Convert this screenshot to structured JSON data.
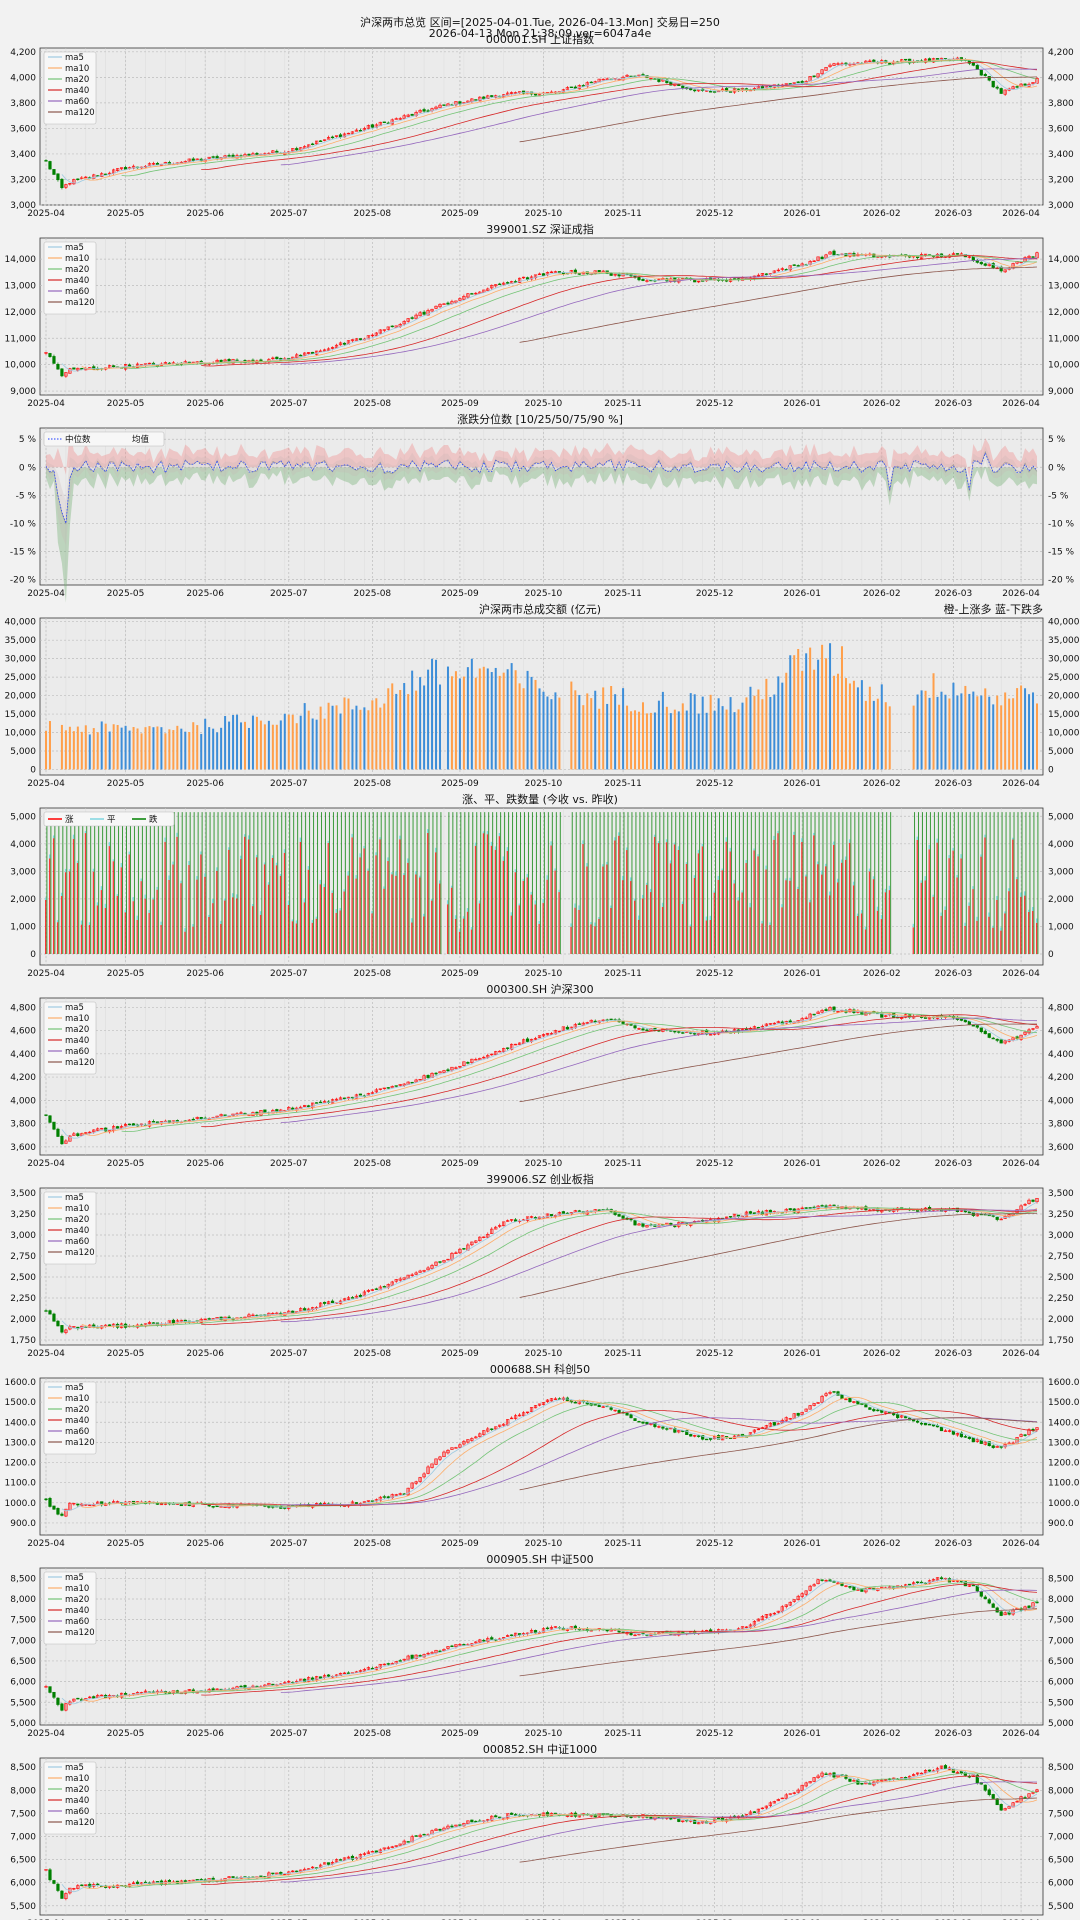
{
  "header": {
    "line1": "沪深两市总览 区间=[2025-04-01.Tue, 2026-04-13.Mon] 交易日=250",
    "line2": "2026-04-13.Mon 21:38:09 ver=6047a4e"
  },
  "x_ticks": [
    "2025-04",
    "2025-05",
    "2025-06",
    "2025-07",
    "2025-08",
    "2025-09",
    "2025-10",
    "2025-11",
    "2025-12",
    "2026-01",
    "2026-02",
    "2026-03",
    "2026-04"
  ],
  "ma_names": [
    "ma5",
    "ma10",
    "ma20",
    "ma40",
    "ma60",
    "ma120"
  ],
  "colors": {
    "up": "#ff0000",
    "down": "#008000",
    "ma5": "#9ecae1",
    "ma10": "#fdae6b",
    "ma20": "#74c476",
    "ma40": "#d62728",
    "ma60": "#9467bd",
    "ma120": "#8c564b",
    "bar_orange": "#ff9f4a",
    "bar_blue": "#3c8dd8",
    "median": "#1f3cff"
  },
  "chart_data": [
    {
      "type": "candlestick",
      "title": "000001.SH 上证指数",
      "yticks": [
        "3,000",
        "3,200",
        "3,400",
        "3,600",
        "3,800",
        "4,000",
        "4,200"
      ],
      "ylim": [
        3000,
        4230
      ],
      "legend": [
        "ma5",
        "ma10",
        "ma20",
        "ma40",
        "ma60",
        "ma120"
      ],
      "anchors": [
        [
          0,
          3340
        ],
        [
          4,
          3130
        ],
        [
          6,
          3180
        ],
        [
          20,
          3290
        ],
        [
          40,
          3360
        ],
        [
          60,
          3420
        ],
        [
          80,
          3600
        ],
        [
          100,
          3780
        ],
        [
          115,
          3870
        ],
        [
          128,
          3880
        ],
        [
          140,
          3990
        ],
        [
          150,
          4010
        ],
        [
          165,
          3890
        ],
        [
          175,
          3900
        ],
        [
          190,
          3960
        ],
        [
          197,
          4100
        ],
        [
          210,
          4120
        ],
        [
          230,
          4140
        ],
        [
          233,
          4090
        ],
        [
          240,
          3880
        ],
        [
          249,
          3980
        ]
      ]
    },
    {
      "type": "candlestick",
      "title": "399001.SZ 深证成指",
      "yticks": [
        "9,000",
        "10,000",
        "11,000",
        "12,000",
        "13,000",
        "14,000"
      ],
      "ylim": [
        8850,
        14800
      ],
      "legend": [
        "ma5",
        "ma10",
        "ma20",
        "ma40",
        "ma60",
        "ma120"
      ],
      "anchors": [
        [
          0,
          10480
        ],
        [
          4,
          9600
        ],
        [
          6,
          9800
        ],
        [
          20,
          9950
        ],
        [
          40,
          10100
        ],
        [
          60,
          10200
        ],
        [
          80,
          11000
        ],
        [
          100,
          12300
        ],
        [
          115,
          13100
        ],
        [
          128,
          13500
        ],
        [
          140,
          13500
        ],
        [
          150,
          13250
        ],
        [
          165,
          13200
        ],
        [
          175,
          13250
        ],
        [
          190,
          13800
        ],
        [
          197,
          14200
        ],
        [
          210,
          14100
        ],
        [
          230,
          14150
        ],
        [
          233,
          14000
        ],
        [
          240,
          13600
        ],
        [
          249,
          14200
        ]
      ]
    },
    {
      "type": "band",
      "title": "涨跌分位数 [10/25/50/75/90 %]",
      "yticks": [
        "-20 %",
        "-15 %",
        "-10 %",
        "-5 %",
        "0 %",
        "5 %"
      ],
      "yticks_left": [
        "-20 %",
        "-15 %",
        "-10 %",
        "-5 %",
        "0 %",
        "5 %"
      ],
      "ylim": [
        -21,
        7
      ],
      "legend": [
        "中位数",
        "均值"
      ],
      "series": [
        {
          "name": "中位数"
        },
        {
          "name": "均值"
        }
      ]
    },
    {
      "type": "bar",
      "title": "沪深两市总成交额 (亿元)",
      "note": "橙-上涨多 蓝-下跌多",
      "yticks": [
        "0",
        "5,000",
        "10,000",
        "15,000",
        "20,000",
        "25,000",
        "30,000",
        "35,000",
        "40,000"
      ],
      "ylim": [
        -1500,
        41000
      ]
    },
    {
      "type": "stacked-bar",
      "title": "涨、平、跌数量 (今收 vs. 昨收)",
      "legend": [
        "涨",
        "平",
        "跌"
      ],
      "yticks": [
        "0",
        "1,000",
        "2,000",
        "3,000",
        "4,000",
        "5,000"
      ],
      "ylim": [
        -400,
        5300
      ]
    },
    {
      "type": "candlestick",
      "title": "000300.SH 沪深300",
      "yticks": [
        "3,600",
        "3,800",
        "4,000",
        "4,200",
        "4,400",
        "4,600",
        "4,800"
      ],
      "ylim": [
        3530,
        4880
      ],
      "legend": [
        "ma5",
        "ma10",
        "ma20",
        "ma40",
        "ma60",
        "ma120"
      ],
      "anchors": [
        [
          0,
          3880
        ],
        [
          4,
          3620
        ],
        [
          6,
          3700
        ],
        [
          20,
          3780
        ],
        [
          40,
          3850
        ],
        [
          60,
          3920
        ],
        [
          80,
          4050
        ],
        [
          100,
          4250
        ],
        [
          115,
          4450
        ],
        [
          128,
          4600
        ],
        [
          140,
          4700
        ],
        [
          150,
          4620
        ],
        [
          165,
          4580
        ],
        [
          175,
          4600
        ],
        [
          190,
          4700
        ],
        [
          197,
          4790
        ],
        [
          210,
          4730
        ],
        [
          230,
          4700
        ],
        [
          233,
          4650
        ],
        [
          240,
          4480
        ],
        [
          249,
          4630
        ]
      ]
    },
    {
      "type": "candlestick",
      "title": "399006.SZ 创业板指",
      "yticks": [
        "1,750",
        "2,000",
        "2,250",
        "2,500",
        "2,750",
        "3,000",
        "3,250",
        "3,500"
      ],
      "ylim": [
        1690,
        3560
      ],
      "legend": [
        "ma5",
        "ma10",
        "ma20",
        "ma40",
        "ma60",
        "ma120"
      ],
      "anchors": [
        [
          0,
          2100
        ],
        [
          4,
          1850
        ],
        [
          6,
          1900
        ],
        [
          20,
          1920
        ],
        [
          40,
          1990
        ],
        [
          60,
          2060
        ],
        [
          80,
          2300
        ],
        [
          100,
          2700
        ],
        [
          115,
          3150
        ],
        [
          128,
          3250
        ],
        [
          140,
          3300
        ],
        [
          150,
          3100
        ],
        [
          165,
          3150
        ],
        [
          175,
          3250
        ],
        [
          190,
          3300
        ],
        [
          197,
          3350
        ],
        [
          210,
          3300
        ],
        [
          230,
          3300
        ],
        [
          233,
          3250
        ],
        [
          240,
          3200
        ],
        [
          249,
          3450
        ]
      ]
    },
    {
      "type": "candlestick",
      "title": "000688.SH 科创50",
      "yticks": [
        "900.0",
        "1000.0",
        "1100.0",
        "1200.0",
        "1300.0",
        "1400.0",
        "1500.0",
        "1600.0"
      ],
      "ylim": [
        840,
        1620
      ],
      "legend": [
        "ma5",
        "ma10",
        "ma20",
        "ma40",
        "ma60",
        "ma120"
      ],
      "anchors": [
        [
          0,
          1010
        ],
        [
          4,
          930
        ],
        [
          6,
          990
        ],
        [
          20,
          1000
        ],
        [
          40,
          990
        ],
        [
          60,
          980
        ],
        [
          80,
          1000
        ],
        [
          90,
          1050
        ],
        [
          100,
          1250
        ],
        [
          115,
          1400
        ],
        [
          128,
          1520
        ],
        [
          140,
          1480
        ],
        [
          150,
          1400
        ],
        [
          165,
          1320
        ],
        [
          175,
          1330
        ],
        [
          190,
          1450
        ],
        [
          197,
          1550
        ],
        [
          210,
          1450
        ],
        [
          220,
          1400
        ],
        [
          230,
          1330
        ],
        [
          240,
          1270
        ],
        [
          249,
          1380
        ]
      ]
    },
    {
      "type": "candlestick",
      "title": "000905.SH 中证500",
      "yticks": [
        "5,000",
        "5,500",
        "6,000",
        "6,500",
        "7,000",
        "7,500",
        "8,000",
        "8,500"
      ],
      "ylim": [
        4950,
        8750
      ],
      "legend": [
        "ma5",
        "ma10",
        "ma20",
        "ma40",
        "ma60",
        "ma120"
      ],
      "anchors": [
        [
          0,
          5850
        ],
        [
          4,
          5350
        ],
        [
          6,
          5550
        ],
        [
          20,
          5700
        ],
        [
          40,
          5800
        ],
        [
          60,
          5950
        ],
        [
          80,
          6300
        ],
        [
          100,
          6800
        ],
        [
          115,
          7100
        ],
        [
          128,
          7300
        ],
        [
          140,
          7250
        ],
        [
          150,
          7150
        ],
        [
          165,
          7200
        ],
        [
          175,
          7300
        ],
        [
          185,
          7800
        ],
        [
          195,
          8500
        ],
        [
          205,
          8200
        ],
        [
          215,
          8300
        ],
        [
          225,
          8500
        ],
        [
          233,
          8300
        ],
        [
          240,
          7600
        ],
        [
          249,
          7900
        ]
      ]
    },
    {
      "type": "candlestick",
      "title": "000852.SH 中证1000",
      "yticks": [
        "5,500",
        "6,000",
        "6,500",
        "7,000",
        "7,500",
        "8,000",
        "8,500"
      ],
      "ylim": [
        5300,
        8700
      ],
      "legend": [
        "ma5",
        "ma10",
        "ma20",
        "ma40",
        "ma60",
        "ma120"
      ],
      "anchors": [
        [
          0,
          6250
        ],
        [
          4,
          5650
        ],
        [
          6,
          5900
        ],
        [
          20,
          5950
        ],
        [
          40,
          6050
        ],
        [
          60,
          6200
        ],
        [
          80,
          6600
        ],
        [
          100,
          7200
        ],
        [
          115,
          7450
        ],
        [
          128,
          7500
        ],
        [
          140,
          7450
        ],
        [
          150,
          7450
        ],
        [
          165,
          7300
        ],
        [
          175,
          7450
        ],
        [
          185,
          7800
        ],
        [
          195,
          8400
        ],
        [
          205,
          8150
        ],
        [
          215,
          8250
        ],
        [
          225,
          8500
        ],
        [
          233,
          8300
        ],
        [
          240,
          7600
        ],
        [
          249,
          8000
        ]
      ]
    }
  ]
}
